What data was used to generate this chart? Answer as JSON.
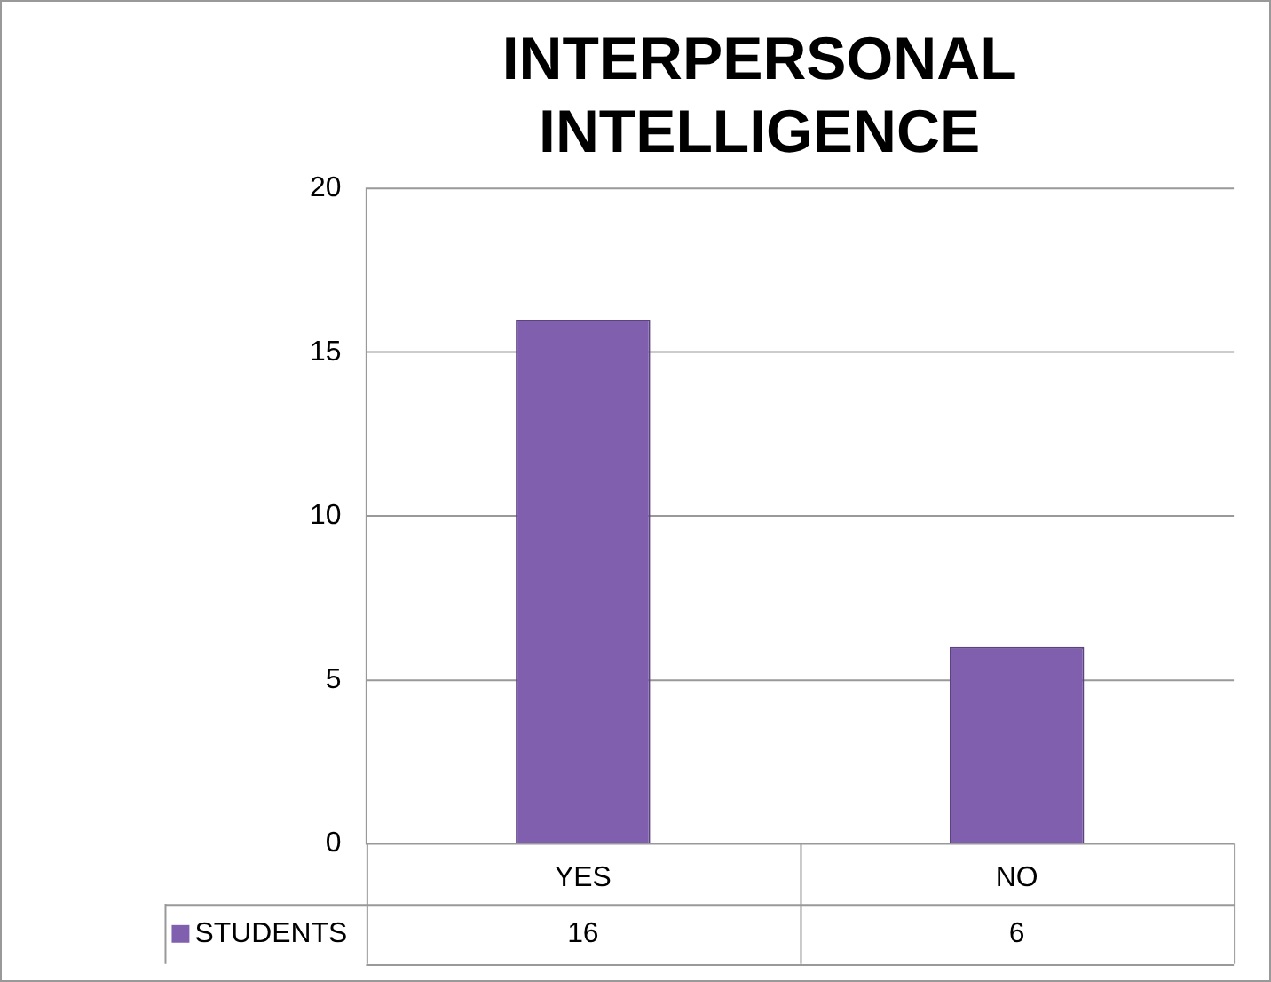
{
  "chart_data": {
    "type": "bar",
    "title": "INTERPERSONAL INTELLIGENCE",
    "categories": [
      "YES",
      "NO"
    ],
    "series": [
      {
        "name": "STUDENTS",
        "color": "#7f5fae",
        "values": [
          16,
          6
        ]
      }
    ],
    "ylim": [
      0,
      20
    ],
    "yticks": [
      0,
      5,
      10,
      15,
      20
    ],
    "grid": "y",
    "data_labels": true,
    "legend": "bottom"
  }
}
